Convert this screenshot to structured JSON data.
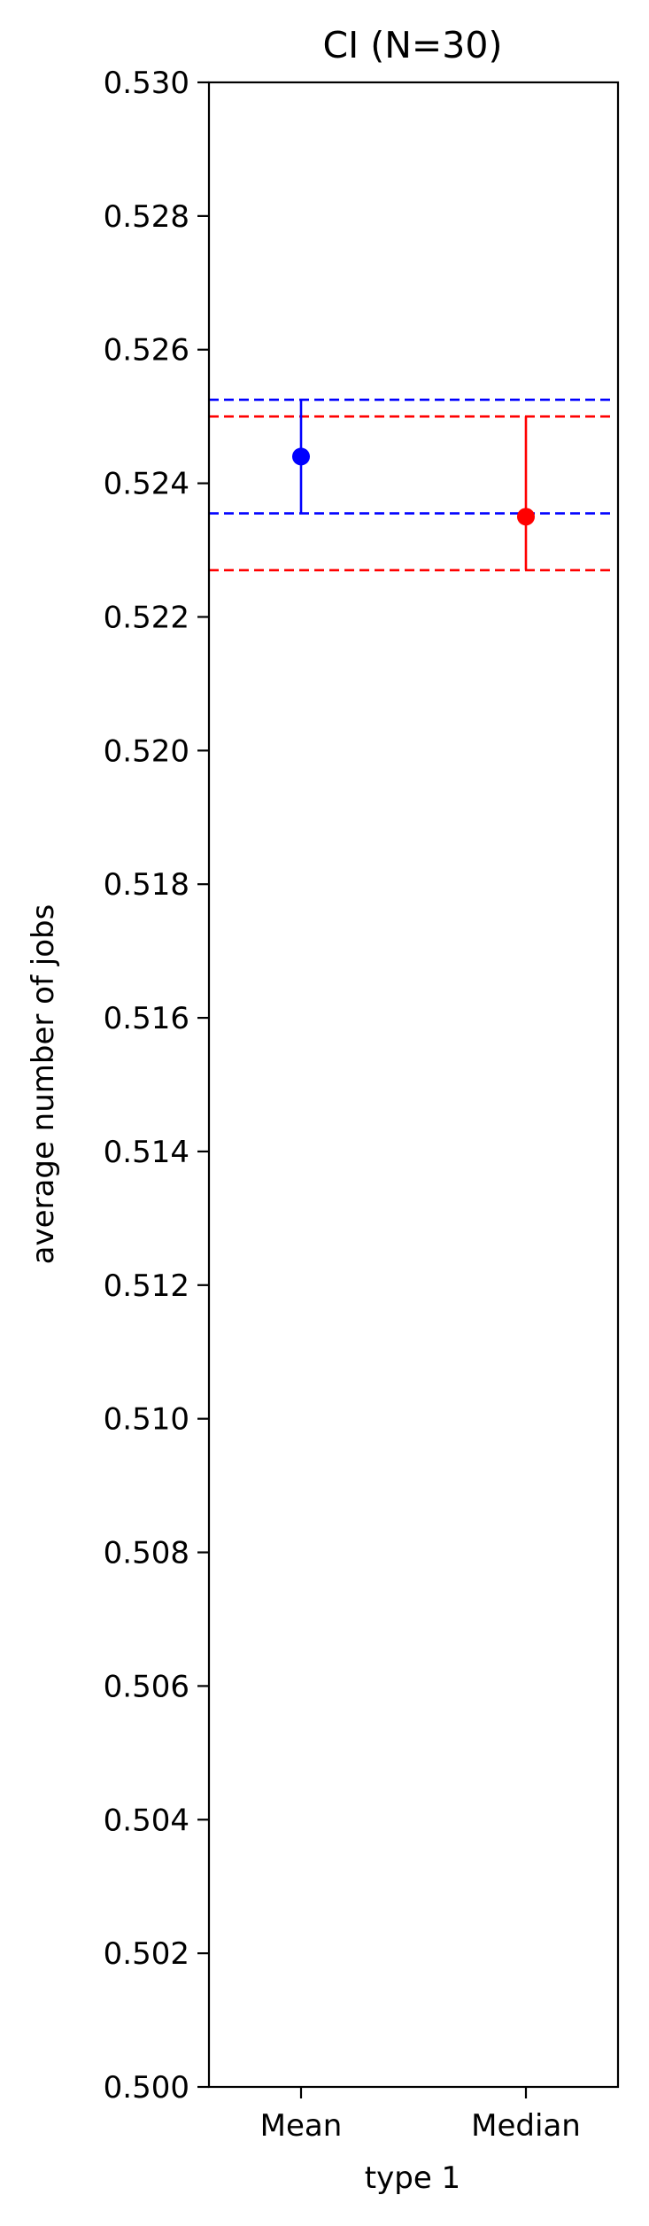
{
  "chart_data": {
    "type": "errorbar",
    "title": "CI (N=30)",
    "xlabel": "type 1",
    "ylabel": "average number of jobs",
    "ylim": [
      0.5,
      0.53
    ],
    "yticks": [
      "0.500",
      "0.502",
      "0.504",
      "0.506",
      "0.508",
      "0.510",
      "0.512",
      "0.514",
      "0.516",
      "0.518",
      "0.520",
      "0.522",
      "0.524",
      "0.526",
      "0.528",
      "0.530"
    ],
    "categories": [
      "Mean",
      "Median"
    ],
    "points": [
      {
        "category": "Mean",
        "value": 0.5244,
        "lower": 0.52355,
        "upper": 0.52525,
        "color": "#0000ff"
      },
      {
        "category": "Median",
        "value": 0.5235,
        "lower": 0.5227,
        "upper": 0.525,
        "color": "#ff0000"
      }
    ],
    "reference_lines": [
      {
        "value": 0.52525,
        "color": "#0000ff",
        "style": "dashed"
      },
      {
        "value": 0.52355,
        "color": "#0000ff",
        "style": "dashed"
      },
      {
        "value": 0.525,
        "color": "#ff0000",
        "style": "dashed"
      },
      {
        "value": 0.5227,
        "color": "#ff0000",
        "style": "dashed"
      }
    ],
    "grid": false,
    "legend": "none"
  }
}
